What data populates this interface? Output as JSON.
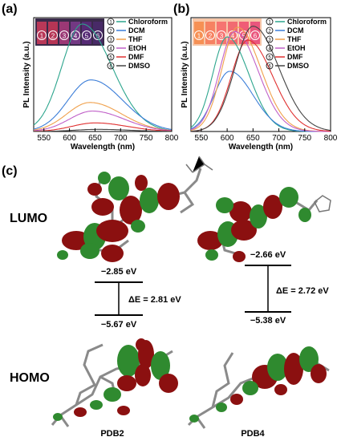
{
  "figure": {
    "panel_labels": [
      "(a)",
      "(b)",
      "(c)"
    ]
  },
  "chart_data": [
    {
      "type": "line",
      "panel": "(a)",
      "xlabel": "Wavelength (nm)",
      "ylabel": "PL Intensity (a.u.)",
      "xlim": [
        530,
        800
      ],
      "xticks": [
        "550",
        "600",
        "650",
        "700",
        "750",
        "800"
      ],
      "grid": false,
      "legend_position": "top-right",
      "inset_vial_labels": [
        "1",
        "2",
        "3",
        "4",
        "5",
        "6"
      ],
      "series": [
        {
          "name": "Chloroform",
          "number": "1",
          "color": "#2ca58d",
          "peak": 625,
          "amplitude": 1.0,
          "sigma_left": 40,
          "sigma_right": 58
        },
        {
          "name": "DCM",
          "number": "2",
          "color": "#3b7dd8",
          "peak": 642,
          "amplitude": 0.48,
          "sigma_left": 45,
          "sigma_right": 62
        },
        {
          "name": "THF",
          "number": "3",
          "color": "#f0a04b",
          "peak": 640,
          "amplitude": 0.27,
          "sigma_left": 45,
          "sigma_right": 62
        },
        {
          "name": "EtOH",
          "number": "4",
          "color": "#c060c8",
          "peak": 645,
          "amplitude": 0.19,
          "sigma_left": 45,
          "sigma_right": 62
        },
        {
          "name": "DMF",
          "number": "5",
          "color": "#e03030",
          "peak": 650,
          "amplitude": 0.08,
          "sigma_left": 45,
          "sigma_right": 62
        },
        {
          "name": "DMSO",
          "number": "6",
          "color": "#444444",
          "peak": 655,
          "amplitude": 0.02,
          "sigma_left": 45,
          "sigma_right": 62
        }
      ]
    },
    {
      "type": "line",
      "panel": "(b)",
      "xlabel": "Wavelength (nm)",
      "ylabel": "PL Intensity (a.u.)",
      "xlim": [
        530,
        800
      ],
      "xticks": [
        "550",
        "600",
        "650",
        "700",
        "750",
        "800"
      ],
      "grid": false,
      "legend_position": "top-right",
      "inset_vial_labels": [
        "1",
        "2",
        "3",
        "4",
        "5",
        "6"
      ],
      "series": [
        {
          "name": "Chloroform",
          "number": "1",
          "color": "#2ca58d",
          "peak": 600,
          "amplitude": 0.88,
          "sigma_left": 28,
          "sigma_right": 42
        },
        {
          "name": "DCM",
          "number": "2",
          "color": "#3b7dd8",
          "peak": 605,
          "amplitude": 0.56,
          "sigma_left": 30,
          "sigma_right": 45
        },
        {
          "name": "THF",
          "number": "3",
          "color": "#f0a04b",
          "peak": 620,
          "amplitude": 0.97,
          "sigma_left": 30,
          "sigma_right": 45
        },
        {
          "name": "EtOH",
          "number": "4",
          "color": "#c060c8",
          "peak": 615,
          "amplitude": 0.93,
          "sigma_left": 30,
          "sigma_right": 45
        },
        {
          "name": "DMF",
          "number": "5",
          "color": "#e03030",
          "peak": 640,
          "amplitude": 0.85,
          "sigma_left": 32,
          "sigma_right": 48
        },
        {
          "name": "DMSO",
          "number": "6",
          "color": "#444444",
          "peak": 650,
          "amplitude": 0.98,
          "sigma_left": 35,
          "sigma_right": 50
        }
      ]
    }
  ],
  "orbitals": {
    "lumo_label": "LUMO",
    "homo_label": "HOMO",
    "molecules": [
      {
        "name": "PDB2",
        "lumo": "−2.85 eV",
        "homo": "−5.67 eV",
        "gap": "ΔE = 2.81 eV"
      },
      {
        "name": "PDB4",
        "lumo": "−2.66 eV",
        "homo": "−5.38 eV",
        "gap": "ΔE = 2.72 eV"
      }
    ]
  },
  "colors": {
    "lobe_red": "#8b1010",
    "lobe_green": "#2f8a2f",
    "bond_gray": "#8a8a8a",
    "vial_a": [
      "#c83a5a",
      "#c43656",
      "#a63a7a",
      "#7a3a8a",
      "#5a2a7a",
      "#4a2a6a"
    ],
    "vial_b": [
      "#f58a4a",
      "#f57a5a",
      "#f56a6a",
      "#f0606a",
      "#ee5070",
      "#e84878"
    ]
  }
}
